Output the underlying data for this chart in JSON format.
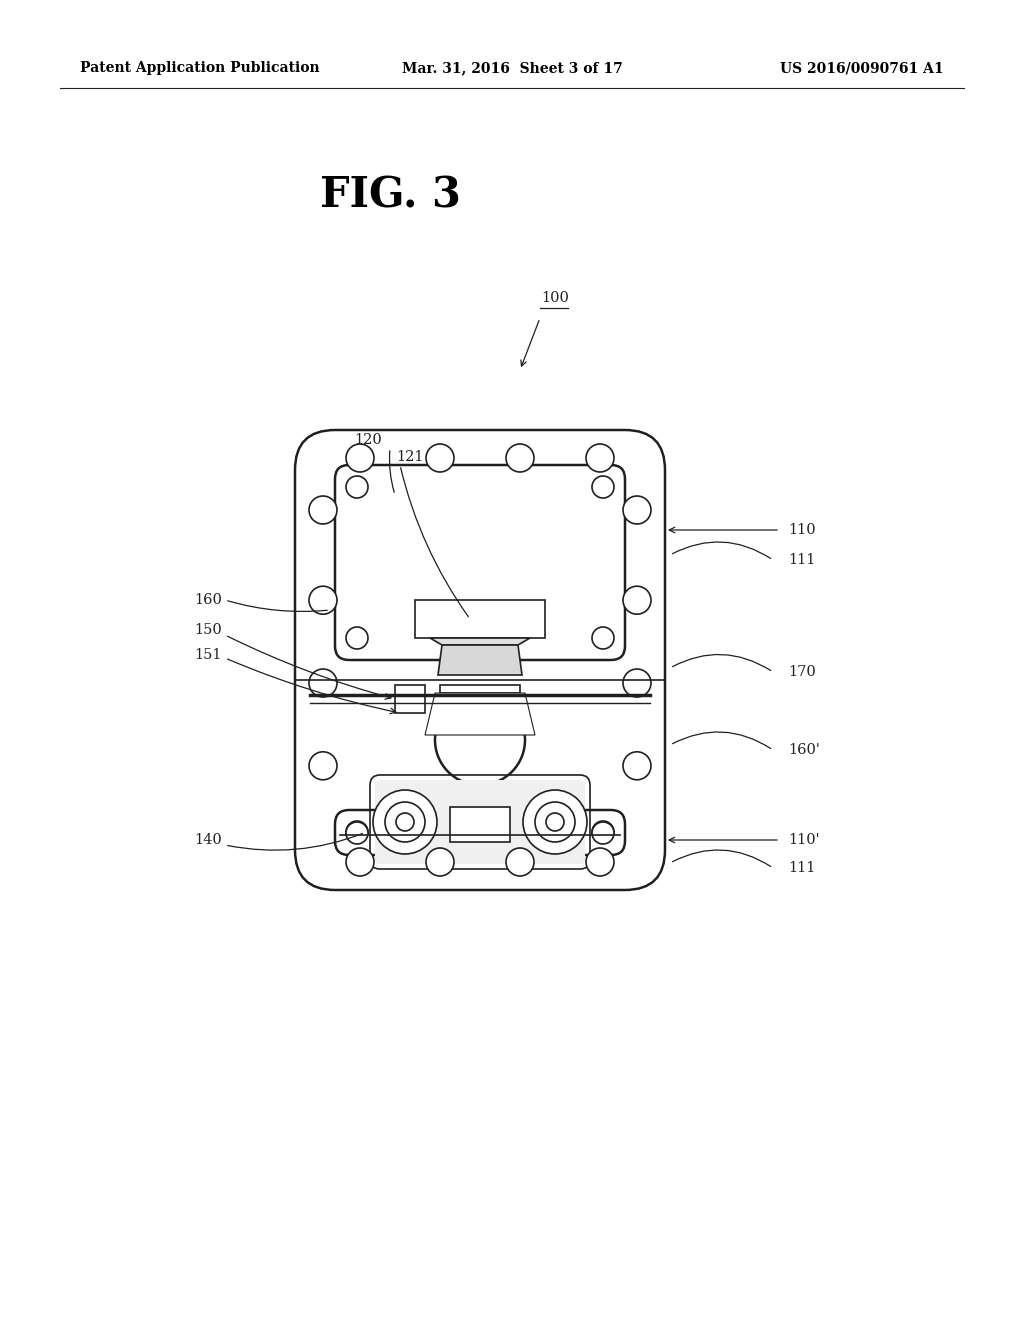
{
  "bg_color": "#ffffff",
  "line_color": "#231f20",
  "header_left": "Patent Application Publication",
  "header_mid": "Mar. 31, 2016  Sheet 3 of 17",
  "header_right": "US 2016/0090761 A1",
  "fig_label": "FIG. 3"
}
